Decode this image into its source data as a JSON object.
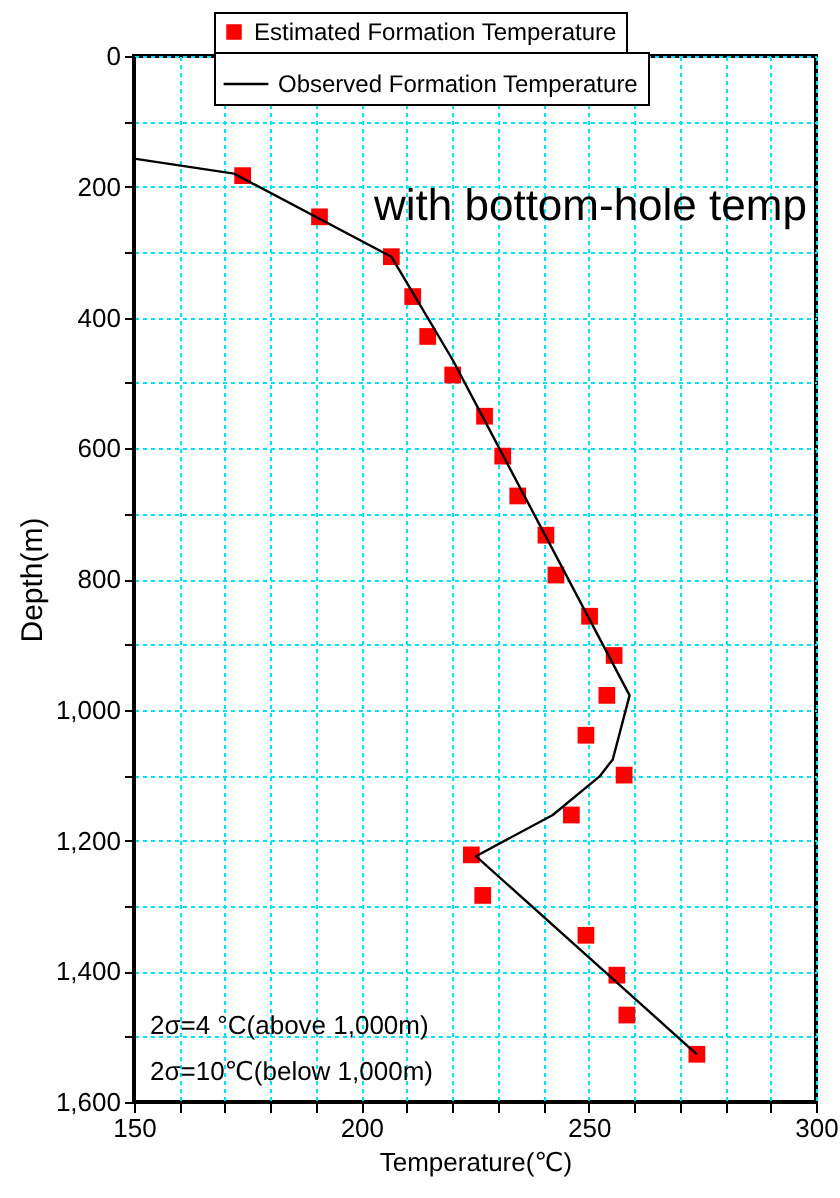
{
  "chart_data": {
    "type": "scatter",
    "xlabel": "Temperature(℃)",
    "ylabel": "Depth(m)",
    "series": [
      {
        "name": "Estimated Formation Temperature",
        "color": "#ff0000",
        "marker": "square",
        "x": [
          173.9,
          190.8,
          206.6,
          211.3,
          214.6,
          220.1,
          227.1,
          231.1,
          234.4,
          240.6,
          242.8,
          250.2,
          255.6,
          254.0,
          249.4,
          257.8,
          246.2,
          224.2,
          226.7,
          249.4,
          256.2,
          258.4,
          273.8
        ],
        "values": [
          183,
          246,
          307,
          368,
          429,
          488,
          551,
          612,
          673,
          733,
          794,
          857,
          917,
          978,
          1039,
          1100,
          1161,
          1222,
          1284,
          1345,
          1406,
          1467,
          1527
        ]
      },
      {
        "name": "Observed Formation Temperature",
        "type": "line",
        "color": "#000000",
        "line_style": "solid",
        "x": [
          150,
          172,
          206.6,
          220.1,
          259,
          255.3,
          252.4,
          242.1,
          225.2,
          273.8
        ],
        "values": [
          157,
          180,
          307,
          465,
          978,
          1076,
          1102,
          1161,
          1224,
          1527
        ]
      }
    ],
    "xlim": [
      150,
      300
    ],
    "xticks": [
      150,
      {
        "value": 160,
        "label": null
      },
      {
        "value": 170,
        "label": null
      },
      {
        "value": 180,
        "label": null
      },
      {
        "value": 190,
        "label": null
      },
      200,
      {
        "value": 210,
        "label": null
      },
      {
        "value": 220,
        "label": null
      },
      {
        "value": 230,
        "label": null
      },
      {
        "value": 240,
        "label": null
      },
      250,
      {
        "value": 260,
        "label": null
      },
      {
        "value": 270,
        "label": null
      },
      {
        "value": 280,
        "label": null
      },
      {
        "value": 290,
        "label": null
      },
      300
    ],
    "ylim": [
      1600,
      0
    ],
    "yticks": [
      0,
      {
        "value": 100,
        "label": null
      },
      200,
      {
        "value": 300,
        "label": null
      },
      400,
      {
        "value": 500,
        "label": null
      },
      600,
      {
        "value": 700,
        "label": null
      },
      800,
      {
        "value": 900,
        "label": null
      },
      {
        "value": 1000,
        "label": "1,000"
      },
      {
        "value": 1100,
        "label": null
      },
      {
        "value": 1200,
        "label": "1,200"
      },
      {
        "value": 1300,
        "label": null
      },
      {
        "value": 1400,
        "label": "1,400"
      },
      {
        "value": 1500,
        "label": null
      },
      {
        "value": 1600,
        "label": "1,600"
      }
    ],
    "grid": true,
    "legend": "top",
    "annotations": [
      "with bottom-hole temp",
      "2σ=4 °C(above 1,000m)",
      "2σ=10℃(below 1,000m)"
    ]
  }
}
